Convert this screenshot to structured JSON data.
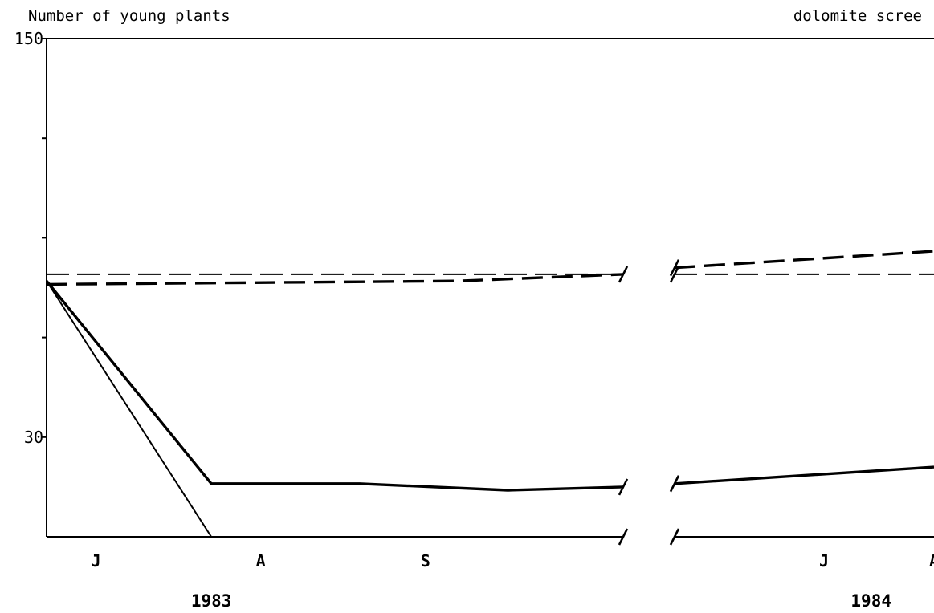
{
  "chart_data": {
    "type": "line",
    "title": "dolomite scree",
    "ylabel": "Number of young plants",
    "xlabel": "",
    "ylim": [
      0,
      150
    ],
    "y_tick_labels": [
      {
        "value": 150,
        "label": "150"
      },
      {
        "value": 30,
        "label": "30"
      }
    ],
    "y_ticks_unlabeled": [
      120,
      90,
      60
    ],
    "month_labels": [
      {
        "label": "J",
        "x": 0.3
      },
      {
        "label": "A",
        "x": 1.3
      },
      {
        "label": "S",
        "x": 2.3
      },
      {
        "label": "J",
        "x": 4.8
      },
      {
        "label": "A",
        "x": 5.5
      }
    ],
    "year_labels": [
      {
        "label": "1983",
        "x": 1.0
      },
      {
        "label": "1984",
        "x": 5.1
      }
    ],
    "x_range": [
      0,
      5.5
    ],
    "axis_break": [
      3.5,
      3.85
    ],
    "series": [
      {
        "style": "dashed",
        "weight": "thin",
        "segments": [
          [
            [
              0,
              79
            ],
            [
              3.5,
              79
            ]
          ],
          [
            [
              3.85,
              79
            ],
            [
              5.5,
              79
            ]
          ]
        ]
      },
      {
        "style": "dashed",
        "weight": "thick",
        "segments": [
          [
            [
              0,
              76
            ],
            [
              2.5,
              77
            ],
            [
              3.5,
              79
            ]
          ],
          [
            [
              3.85,
              81
            ],
            [
              5.5,
              86
            ]
          ]
        ]
      },
      {
        "style": "solid",
        "weight": "thick",
        "segments": [
          [
            [
              0,
              77
            ],
            [
              1.0,
              16
            ],
            [
              1.9,
              16
            ],
            [
              2.8,
              14
            ],
            [
              3.5,
              15
            ]
          ],
          [
            [
              3.85,
              16
            ],
            [
              5.5,
              21
            ]
          ]
        ]
      },
      {
        "style": "solid",
        "weight": "thin",
        "segments": [
          [
            [
              0,
              77
            ],
            [
              1.0,
              0
            ]
          ],
          [
            [
              3.5,
              0
            ]
          ],
          [
            [
              3.85,
              0
            ],
            [
              5.5,
              0
            ]
          ]
        ]
      }
    ]
  }
}
